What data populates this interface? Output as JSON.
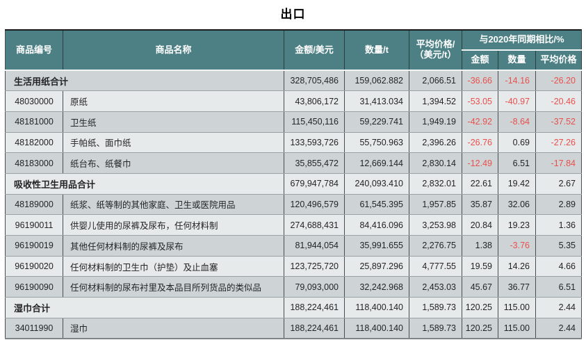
{
  "page_title": "出口",
  "colors": {
    "header_background": "#4d8085",
    "header_text": "#ffffff",
    "negative_value": "#e94f4d",
    "row_stripe_dark": "#ced4d5",
    "row_stripe_light": "#e7eaea",
    "body_text": "#232425"
  },
  "table": {
    "headers": {
      "code": "商品编号",
      "name": "商品名称",
      "amount": "金额/美元",
      "quantity": "数量/t",
      "avg_price_line1": "平均价格/",
      "avg_price_line2": "（美元/t）",
      "yoy_group": "与2020年同期相比/%",
      "yoy_amount": "金额",
      "yoy_quantity": "数量",
      "yoy_avg_price": "平均价格"
    },
    "rows": [
      {
        "type": "summary",
        "code": "",
        "name": "生活用纸合计",
        "amount": "328,705,486",
        "quantity": "159,062.882",
        "avg_price": "2,066.51",
        "yoy_amount": "-36.66",
        "yoy_quantity": "-14.16",
        "yoy_avg_price": "-26.20"
      },
      {
        "type": "detail",
        "code": "48030000",
        "name": "原纸",
        "amount": "43,806,172",
        "quantity": "31,413.034",
        "avg_price": "1,394.52",
        "yoy_amount": "-53.05",
        "yoy_quantity": "-40.97",
        "yoy_avg_price": "-20.46"
      },
      {
        "type": "detail",
        "code": "48181000",
        "name": "卫生纸",
        "amount": "115,450,116",
        "quantity": "59,229.741",
        "avg_price": "1,949.19",
        "yoy_amount": "-42.92",
        "yoy_quantity": "-8.64",
        "yoy_avg_price": "-37.52"
      },
      {
        "type": "detail",
        "code": "48182000",
        "name": "手帕纸、面巾纸",
        "amount": "133,593,726",
        "quantity": "55,750.963",
        "avg_price": "2,396.26",
        "yoy_amount": "-26.76",
        "yoy_quantity": "0.69",
        "yoy_avg_price": "-27.26"
      },
      {
        "type": "detail",
        "code": "48183000",
        "name": "纸台布、纸餐巾",
        "amount": "35,855,472",
        "quantity": "12,669.144",
        "avg_price": "2,830.14",
        "yoy_amount": "-12.49",
        "yoy_quantity": "6.51",
        "yoy_avg_price": "-17.84"
      },
      {
        "type": "summary",
        "code": "",
        "name": "吸收性卫生用品合计",
        "amount": "679,947,784",
        "quantity": "240,093.410",
        "avg_price": "2,832.01",
        "yoy_amount": "22.61",
        "yoy_quantity": "19.42",
        "yoy_avg_price": "2.67"
      },
      {
        "type": "detail",
        "code": "48189000",
        "name": "纸浆、纸等制的其他家庭、卫生或医院用品",
        "amount": "120,496,579",
        "quantity": "61,545.395",
        "avg_price": "1,957.85",
        "yoy_amount": "35.87",
        "yoy_quantity": "32.06",
        "yoy_avg_price": "2.89"
      },
      {
        "type": "detail",
        "code": "96190011",
        "name": "供婴儿使用的尿裤及尿布，任何材料制",
        "amount": "274,688,431",
        "quantity": "84,416.096",
        "avg_price": "3,253.98",
        "yoy_amount": "20.84",
        "yoy_quantity": "19.23",
        "yoy_avg_price": "1.36"
      },
      {
        "type": "detail",
        "code": "96190019",
        "name": "其他任何材料制的尿裤及尿布",
        "amount": "81,944,054",
        "quantity": "35,991.655",
        "avg_price": "2,276.75",
        "yoy_amount": "1.38",
        "yoy_quantity": "-3.76",
        "yoy_avg_price": "5.35"
      },
      {
        "type": "detail",
        "code": "96190020",
        "name": "任何材料制的卫生巾（护垫）及止血塞",
        "amount": "123,725,720",
        "quantity": "25,897.296",
        "avg_price": "4,777.55",
        "yoy_amount": "19.59",
        "yoy_quantity": "14.26",
        "yoy_avg_price": "4.66"
      },
      {
        "type": "detail",
        "code": "96190090",
        "name": "任何材料制的尿布衬里及本品目所列货品的类似品",
        "amount": "79,093,000",
        "quantity": "32,242.968",
        "avg_price": "2,453.03",
        "yoy_amount": "45.67",
        "yoy_quantity": "36.77",
        "yoy_avg_price": "6.51"
      },
      {
        "type": "summary",
        "code": "",
        "name": "湿巾合计",
        "amount": "188,224,461",
        "quantity": "118,400.140",
        "avg_price": "1,589.73",
        "yoy_amount": "120.25",
        "yoy_quantity": "115.00",
        "yoy_avg_price": "2.44"
      },
      {
        "type": "detail",
        "code": "34011990",
        "name": "湿巾",
        "amount": "188,224,461",
        "quantity": "118,400.140",
        "avg_price": "1,589.73",
        "yoy_amount": "120.25",
        "yoy_quantity": "115.00",
        "yoy_avg_price": "2.44"
      }
    ]
  }
}
